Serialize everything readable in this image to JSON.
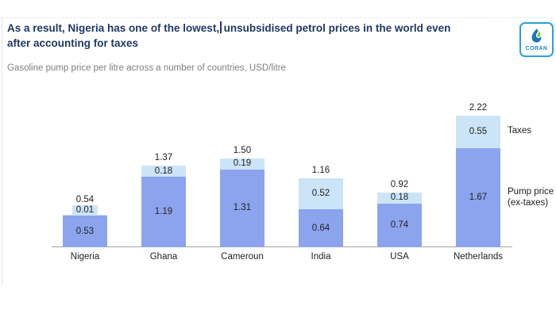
{
  "chart_data": {
    "type": "bar",
    "stacked": true,
    "title_part1": "As a result, Nigeria has one of the lowest,",
    "title_part2": "unsubsidised petrol prices in the world even",
    "title_line2": "after accounting for taxes",
    "subtitle": "Gasoline pump price per litre across a number of countries, USD/litre",
    "unit": "USD/litre",
    "categories": [
      "Nigeria",
      "Ghana",
      "Cameroun",
      "India",
      "USA",
      "Netherlands"
    ],
    "series": [
      {
        "name": "Pump price (ex-taxes)",
        "color": "#8ca4ed",
        "values": [
          0.53,
          1.19,
          1.31,
          0.64,
          0.74,
          1.67
        ],
        "labels": [
          "0.53",
          "1.19",
          "1.31",
          "0.64",
          "0.74",
          "1.67"
        ]
      },
      {
        "name": "Taxes",
        "color": "#cce4f7",
        "values": [
          0.01,
          0.18,
          0.19,
          0.52,
          0.18,
          0.55
        ],
        "labels": [
          "0.01",
          "0.18",
          "0.19",
          "0.52",
          "0.18",
          "0.55"
        ]
      }
    ],
    "totals": [
      "0.54",
      "1.37",
      "1.50",
      "1.16",
      "0.92",
      "2.22"
    ],
    "legend": {
      "taxes": "Taxes",
      "pump_line1": "Pump price",
      "pump_line2": "(ex-taxes)"
    },
    "ylim": [
      0,
      2.4
    ],
    "grid": false,
    "legend_position": "right"
  },
  "logo": {
    "text": "CORAN"
  },
  "colors": {
    "title": "#1f3864",
    "subtitle": "#7f7f7f",
    "label_text": "#1f1f1f",
    "axis_line": "#a6a6a6",
    "logo_border": "#2b9fd9",
    "logo_text": "#1a86c8",
    "logo_drop_blue": "#1b76bd",
    "logo_leaf_green": "#8cc63f"
  }
}
